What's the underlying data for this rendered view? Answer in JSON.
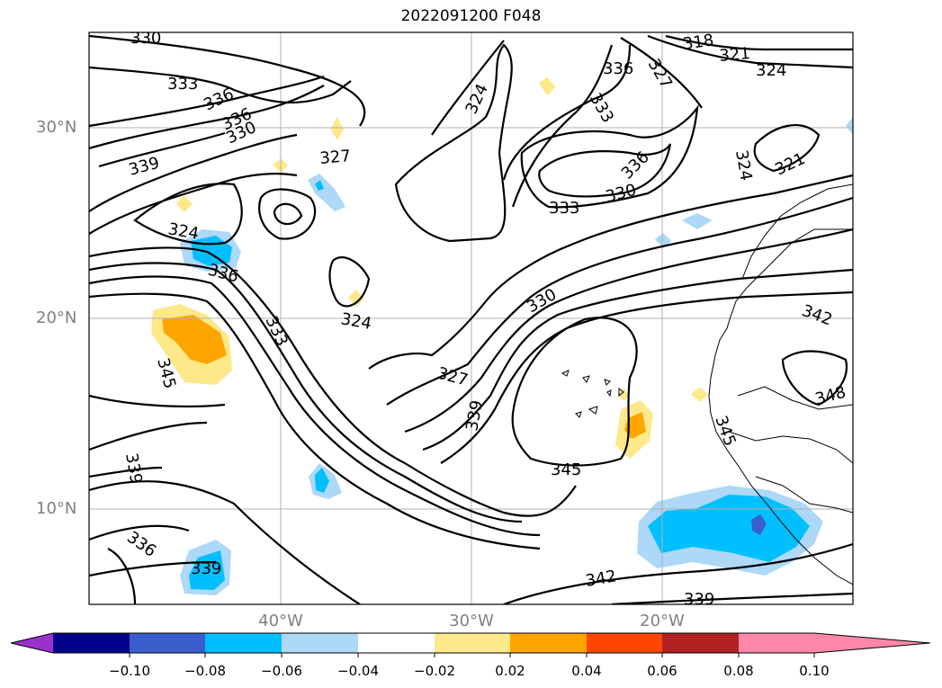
{
  "title": "2022091200 F048",
  "lat_labels": [
    "30°N",
    "20°N",
    "10°N"
  ],
  "lon_labels": [
    "40°W",
    "30°W",
    "20°W"
  ],
  "colorbar": {
    "ticks": [
      "−0.10",
      "−0.08",
      "−0.06",
      "−0.04",
      "−0.02",
      "0.02",
      "0.04",
      "0.06",
      "0.08",
      "0.10"
    ],
    "colors": [
      "#9932cc",
      "#00008b",
      "#3a5fcd",
      "#00bfff",
      "#add8f7",
      "#ffffff",
      "#fde98a",
      "#ffa500",
      "#ff4500",
      "#b22222",
      "#ff88aa"
    ]
  },
  "contour_labels": [
    "330",
    "333",
    "336",
    "336",
    "330",
    "339",
    "324",
    "336",
    "327",
    "324",
    "324",
    "333",
    "336",
    "333",
    "330",
    "336",
    "327",
    "318",
    "321",
    "324",
    "324",
    "321",
    "330",
    "327",
    "339",
    "345",
    "345",
    "339",
    "333",
    "342",
    "348",
    "345",
    "336",
    "339",
    "342",
    "339"
  ]
}
